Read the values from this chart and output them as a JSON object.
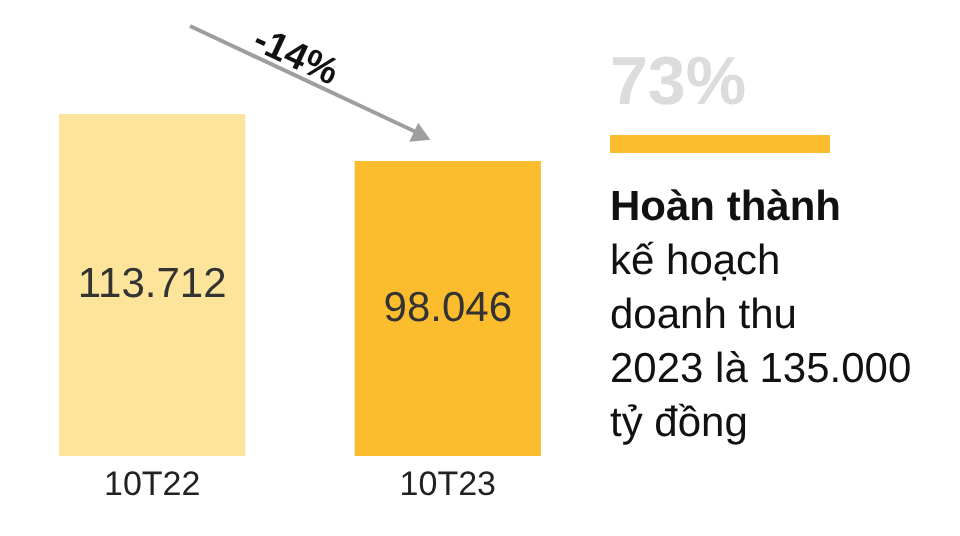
{
  "chart_data": {
    "type": "bar",
    "categories": [
      "10T22",
      "10T23"
    ],
    "values": [
      113712,
      98046
    ],
    "colors": [
      "#fce49a",
      "#fbbd2e"
    ],
    "value_labels": [
      "113.712",
      "98.046"
    ],
    "annotations": [
      "-14%",
      "73%",
      "Hoàn thành",
      "kế hoạch",
      "doanh thu",
      "2023 là 135.000",
      "tỷ đồng"
    ]
  }
}
